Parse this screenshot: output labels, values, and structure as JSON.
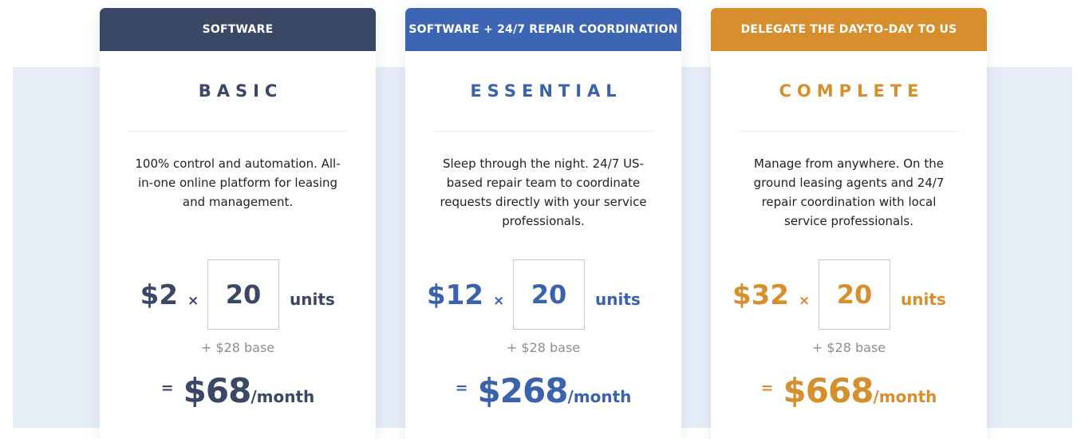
{
  "plans": [
    {
      "header": "SOFTWARE",
      "name": "BASIC",
      "description": "100% control and automation. All-in-one online platform for leasing and management.",
      "price": "$2",
      "times": "×",
      "units_value": "20",
      "units_label": "units",
      "base": "+ $28 base",
      "total_eq": "=",
      "total_amount": "$68",
      "total_per": "/month",
      "accent": "#3a4866",
      "header_bg": "#3a4866"
    },
    {
      "header": "SOFTWARE + 24/7 REPAIR COORDINATION",
      "name": "ESSENTIAL",
      "description": "Sleep through the night. 24/7 US-based repair team to coordinate requests directly with your service professionals.",
      "price": "$12",
      "times": "×",
      "units_value": "20",
      "units_label": "units",
      "base": "+ $28 base",
      "total_eq": "=",
      "total_amount": "$268",
      "total_per": "/month",
      "accent": "#3a62ad",
      "header_bg": "#3c66b3"
    },
    {
      "header": "DELEGATE THE DAY-TO-DAY TO US",
      "name": "COMPLETE",
      "description": "Manage from anywhere. On the ground leasing agents and 24/7 repair coordination with local service professionals.",
      "price": "$32",
      "times": "×",
      "units_value": "20",
      "units_label": "units",
      "base": "+ $28 base",
      "total_eq": "=",
      "total_amount": "$668",
      "total_per": "/month",
      "accent": "#d68f2c",
      "header_bg": "#d68f2c"
    }
  ]
}
